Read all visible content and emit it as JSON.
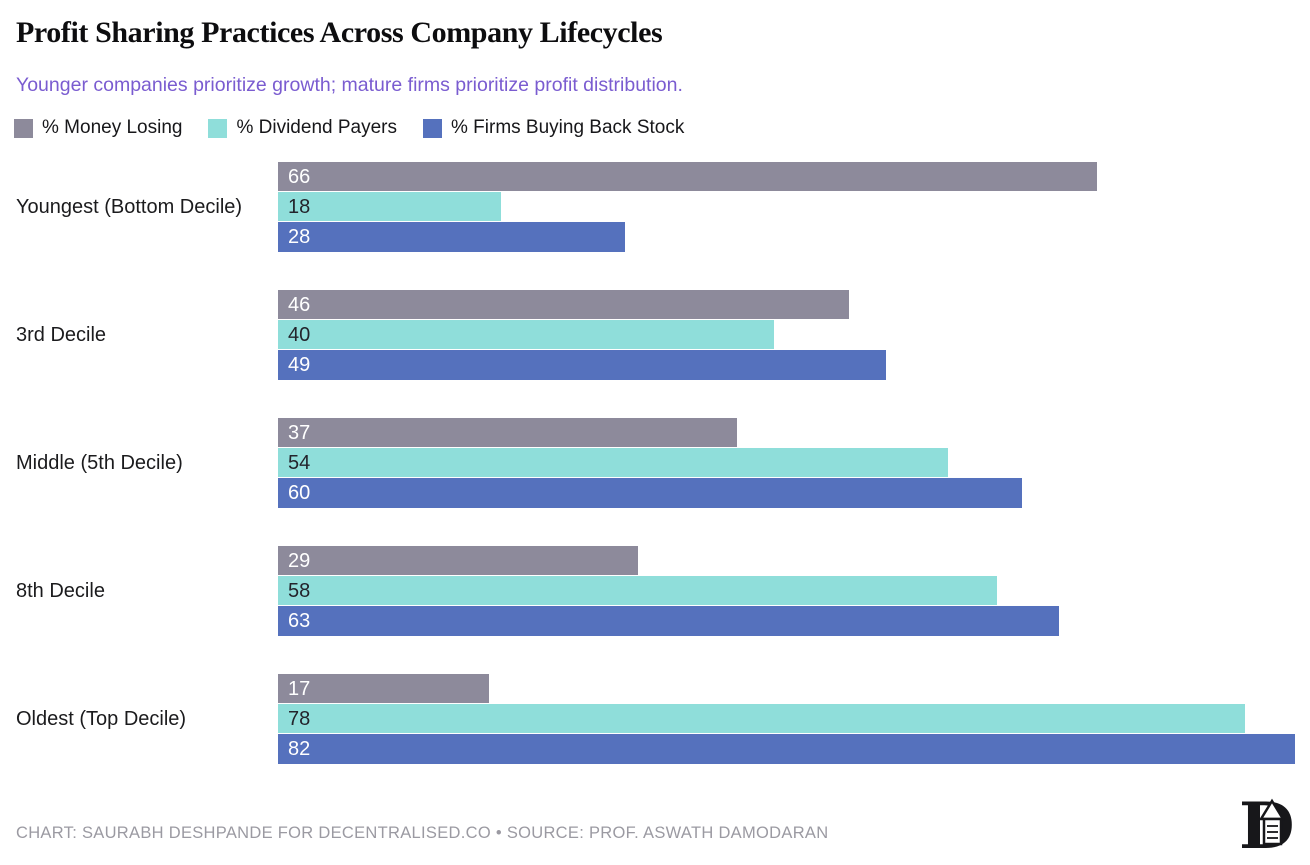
{
  "header": {
    "title": "Profit Sharing Practices Across Company Lifecycles",
    "subtitle": "Younger companies prioritize growth; mature firms prioritize profit distribution."
  },
  "legend": {
    "items": [
      {
        "label": "% Money Losing",
        "color": "#8d8a9b"
      },
      {
        "label": "% Dividend Payers",
        "color": "#8fdeda"
      },
      {
        "label": "% Firms Buying Back Stock",
        "color": "#5571bd"
      }
    ]
  },
  "chart_data": {
    "type": "bar",
    "orientation": "horizontal",
    "title": "Profit Sharing Practices Across Company Lifecycles",
    "categories": [
      "Youngest (Bottom Decile)",
      "3rd Decile",
      "Middle (5th Decile)",
      "8th Decile",
      "Oldest (Top Decile)"
    ],
    "series": [
      {
        "name": "% Money Losing",
        "color": "#8d8a9b",
        "value_text_color": "#ffffff",
        "values": [
          66,
          46,
          37,
          29,
          17
        ]
      },
      {
        "name": "% Dividend Payers",
        "color": "#8fdeda",
        "value_text_color": "#23242c",
        "values": [
          18,
          40,
          54,
          58,
          78
        ]
      },
      {
        "name": "% Firms Buying Back Stock",
        "color": "#5571bd",
        "value_text_color": "#ffffff",
        "values": [
          28,
          49,
          60,
          63,
          82
        ]
      }
    ],
    "xlim": [
      0,
      82
    ],
    "value_labels": "inside-left",
    "grid": false,
    "legend_position": "top",
    "axis_ticks_visible": false
  },
  "footer": {
    "credit": "CHART: SAURABH DESHPANDE FOR DECENTRALISED.CO • SOURCE: PROF. ASWATH DAMODARAN",
    "logo_name": "decentralised-logo"
  },
  "colors": {
    "background": "#ffffff",
    "title": "#0d0d0f",
    "subtitle": "#7a5cd0",
    "category_label": "#1b1b1d",
    "footer": "#9b9aa2"
  }
}
